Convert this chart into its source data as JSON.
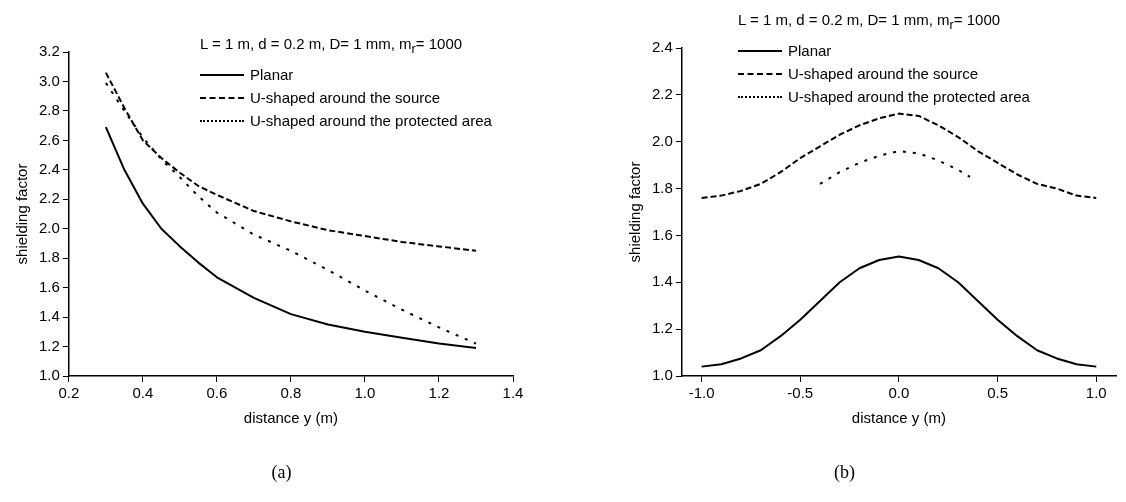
{
  "chart_data": [
    {
      "type": "line",
      "xlabel": "distance y (m)",
      "ylabel": "shielding factor",
      "legend_title": "L = 1 m, d = 0.2 m, D= 1 mm, m$_{r}$= 1000",
      "legend": "top right",
      "grid": false,
      "annotations": [
        "(a)"
      ],
      "xlim": [
        0.2,
        1.4
      ],
      "xticks": [
        0.2,
        0.4,
        0.6,
        0.8,
        {
          "value": 1.0,
          "label": "1.0"
        },
        1.2,
        1.4
      ],
      "ylim": [
        1.0,
        3.2
      ],
      "yticks": [
        {
          "value": 1.0,
          "label": "1.0"
        },
        1.2,
        1.4,
        1.6,
        1.8,
        {
          "value": 2.0,
          "label": "2.0"
        },
        2.2,
        2.4,
        2.6,
        2.8,
        {
          "value": 3.0,
          "label": "3.0"
        },
        3.2
      ],
      "x": [
        0.3,
        0.35,
        0.4,
        0.45,
        0.5,
        0.55,
        0.6,
        0.7,
        0.8,
        0.9,
        1.0,
        1.1,
        1.2,
        1.3
      ],
      "series": [
        {
          "name": "Planar",
          "color": "#000000",
          "line_style": "solid",
          "values": [
            2.69,
            2.4,
            2.17,
            2.0,
            1.88,
            1.77,
            1.67,
            1.53,
            1.42,
            1.35,
            1.3,
            1.26,
            1.22,
            1.19
          ]
        },
        {
          "name": "U-shaped around the source",
          "color": "#000000",
          "line_style": "dashed",
          "values": [
            3.06,
            2.82,
            2.6,
            2.48,
            2.38,
            2.29,
            2.23,
            2.12,
            2.05,
            1.99,
            1.95,
            1.91,
            1.88,
            1.85
          ]
        },
        {
          "name": "U-shaped around the protected area",
          "color": "#000000",
          "line_style": "dotted",
          "values": [
            2.99,
            2.8,
            2.62,
            2.47,
            2.35,
            2.22,
            2.11,
            1.96,
            1.85,
            1.72,
            1.58,
            1.45,
            1.33,
            1.22
          ]
        }
      ]
    },
    {
      "type": "line",
      "xlabel": "distance y (m)",
      "ylabel": "shielding factor",
      "legend_title": "L = 1 m, d = 0.2 m, D= 1 mm, m$_{r}$= 1000",
      "legend": "top",
      "grid": false,
      "annotations": [
        "(b)"
      ],
      "xlim": [
        -1.1,
        1.1
      ],
      "xticks": [
        {
          "value": -1.0,
          "label": "-1.0"
        },
        {
          "value": -0.5,
          "label": "-0.5"
        },
        {
          "value": 0.0,
          "label": "0.0"
        },
        0.5,
        {
          "value": 1.0,
          "label": "1.0"
        }
      ],
      "ylim": [
        1.0,
        2.4
      ],
      "yticks": [
        {
          "value": 1.0,
          "label": "1.0"
        },
        1.2,
        1.4,
        1.6,
        1.8,
        {
          "value": 2.0,
          "label": "2.0"
        },
        2.2,
        2.4
      ],
      "series": [
        {
          "name": "Planar",
          "color": "#000000",
          "line_style": "solid",
          "x": [
            -1.0,
            -0.9,
            -0.8,
            -0.7,
            -0.6,
            -0.5,
            -0.4,
            -0.3,
            -0.2,
            -0.1,
            0.0,
            0.1,
            0.2,
            0.3,
            0.4,
            0.5,
            0.6,
            0.7,
            0.8,
            0.9,
            1.0
          ],
          "values": [
            1.04,
            1.05,
            1.075,
            1.11,
            1.17,
            1.24,
            1.32,
            1.4,
            1.46,
            1.495,
            1.51,
            1.495,
            1.46,
            1.4,
            1.32,
            1.24,
            1.17,
            1.11,
            1.075,
            1.05,
            1.04
          ]
        },
        {
          "name": "U-shaped around the source",
          "color": "#000000",
          "line_style": "dashed",
          "x": [
            -1.0,
            -0.9,
            -0.8,
            -0.7,
            -0.6,
            -0.5,
            -0.4,
            -0.3,
            -0.2,
            -0.1,
            0.0,
            0.1,
            0.2,
            0.3,
            0.4,
            0.5,
            0.6,
            0.7,
            0.8,
            0.9,
            1.0
          ],
          "values": [
            1.76,
            1.77,
            1.79,
            1.82,
            1.87,
            1.93,
            1.98,
            2.03,
            2.07,
            2.1,
            2.12,
            2.11,
            2.07,
            2.02,
            1.96,
            1.91,
            1.86,
            1.82,
            1.8,
            1.77,
            1.76
          ]
        },
        {
          "name": "U-shaped around the protected area",
          "color": "#000000",
          "line_style": "dotted",
          "x": [
            -0.4,
            -0.3,
            -0.2,
            -0.1,
            0.0,
            0.1,
            0.2,
            0.3,
            0.36
          ],
          "values": [
            1.82,
            1.87,
            1.91,
            1.94,
            1.96,
            1.95,
            1.92,
            1.88,
            1.85
          ]
        }
      ]
    }
  ]
}
